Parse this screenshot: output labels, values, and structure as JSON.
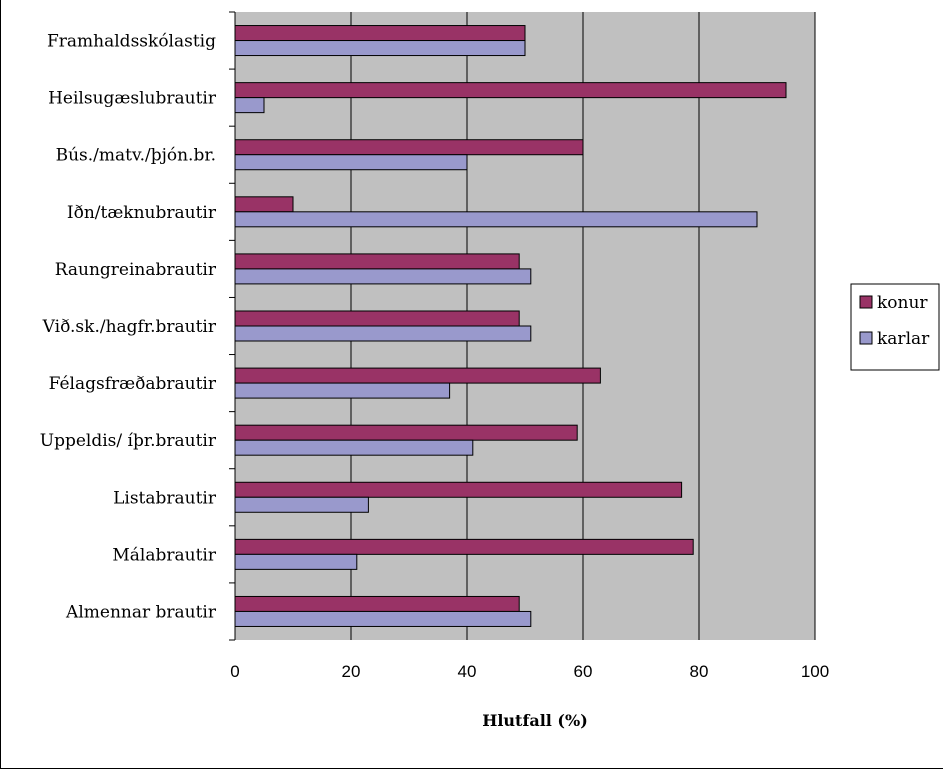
{
  "chart_data": {
    "type": "bar",
    "orientation": "horizontal",
    "categories": [
      "Framhaldsskólastig",
      "Heilsugæslubrautir",
      "Bús./matv./þjón.br.",
      "Iðn/tæknubrautir",
      "Raungreinabrautir",
      "Við.sk./hagfr.brautir",
      "Félagsfræðabrautir",
      "Uppeldis/ íþr.brautir",
      "Listabrautir",
      "Málabrautir",
      "Almennar brautir"
    ],
    "series": [
      {
        "name": "konur",
        "color": "#993366",
        "values": [
          50,
          95,
          60,
          10,
          49,
          49,
          63,
          59,
          77,
          79,
          49
        ]
      },
      {
        "name": "karlar",
        "color": "#9999cc",
        "values": [
          50,
          5,
          40,
          90,
          51,
          51,
          37,
          41,
          23,
          21,
          51
        ]
      }
    ],
    "xlabel": "Hlutfall (%)",
    "xlim": [
      0,
      100
    ],
    "xticks": [
      0,
      20,
      40,
      60,
      80,
      100
    ],
    "plot_background": "#c0c0c0",
    "gridlines": true,
    "legend_position": "right"
  }
}
